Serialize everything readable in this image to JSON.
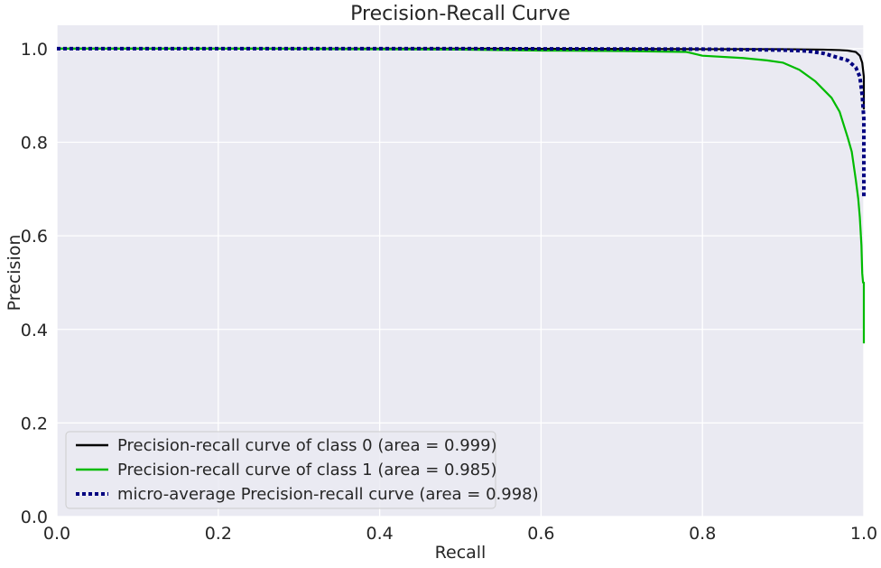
{
  "chart_data": {
    "type": "line",
    "title": "Precision-Recall Curve",
    "xlabel": "Recall",
    "ylabel": "Precision",
    "xlim": [
      0.0,
      1.0
    ],
    "ylim": [
      0.0,
      1.05
    ],
    "x_ticks": [
      0.0,
      0.2,
      0.4,
      0.6,
      0.8,
      1.0
    ],
    "x_tick_labels": [
      "0.0",
      "0.2",
      "0.4",
      "0.6",
      "0.8",
      "1.0"
    ],
    "y_ticks": [
      0.0,
      0.2,
      0.4,
      0.6,
      0.8,
      1.0
    ],
    "y_tick_labels": [
      "0.0",
      "0.2",
      "0.4",
      "0.6",
      "0.8",
      "1.0"
    ],
    "grid": true,
    "background": "#EAEAF2",
    "legend_position": "lower-left",
    "series": [
      {
        "name": "Precision-recall curve of class 0 (area = 0.999)",
        "color": "#000000",
        "style": "solid",
        "x": [
          0.0,
          0.5,
          0.8,
          0.9,
          0.95,
          0.97,
          0.98,
          0.99,
          0.995,
          0.998,
          1.0,
          1.0
        ],
        "y": [
          1.0,
          1.0,
          0.999,
          0.999,
          0.998,
          0.997,
          0.996,
          0.993,
          0.985,
          0.97,
          0.94,
          0.87
        ]
      },
      {
        "name": "Precision-recall curve of class 1 (area = 0.985)",
        "color": "#00BB00",
        "style": "solid",
        "x": [
          0.0,
          0.25,
          0.5,
          0.6,
          0.7,
          0.78,
          0.8,
          0.85,
          0.88,
          0.9,
          0.92,
          0.94,
          0.96,
          0.97,
          0.98,
          0.985,
          0.99,
          0.993,
          0.995,
          0.997,
          0.998,
          0.999,
          1.0,
          1.0
        ],
        "y": [
          1.0,
          1.0,
          0.998,
          0.996,
          0.995,
          0.993,
          0.985,
          0.98,
          0.975,
          0.97,
          0.955,
          0.93,
          0.895,
          0.865,
          0.81,
          0.78,
          0.72,
          0.68,
          0.64,
          0.58,
          0.52,
          0.5,
          0.5,
          0.37
        ]
      },
      {
        "name": "micro-average Precision-recall curve (area = 0.998)",
        "color": "#000080",
        "style": "dotted",
        "x": [
          0.0,
          0.5,
          0.8,
          0.9,
          0.93,
          0.95,
          0.97,
          0.98,
          0.99,
          0.995,
          0.998,
          1.0,
          1.0
        ],
        "y": [
          1.0,
          1.0,
          0.999,
          0.997,
          0.995,
          0.99,
          0.98,
          0.975,
          0.96,
          0.94,
          0.9,
          0.85,
          0.68
        ]
      }
    ]
  }
}
